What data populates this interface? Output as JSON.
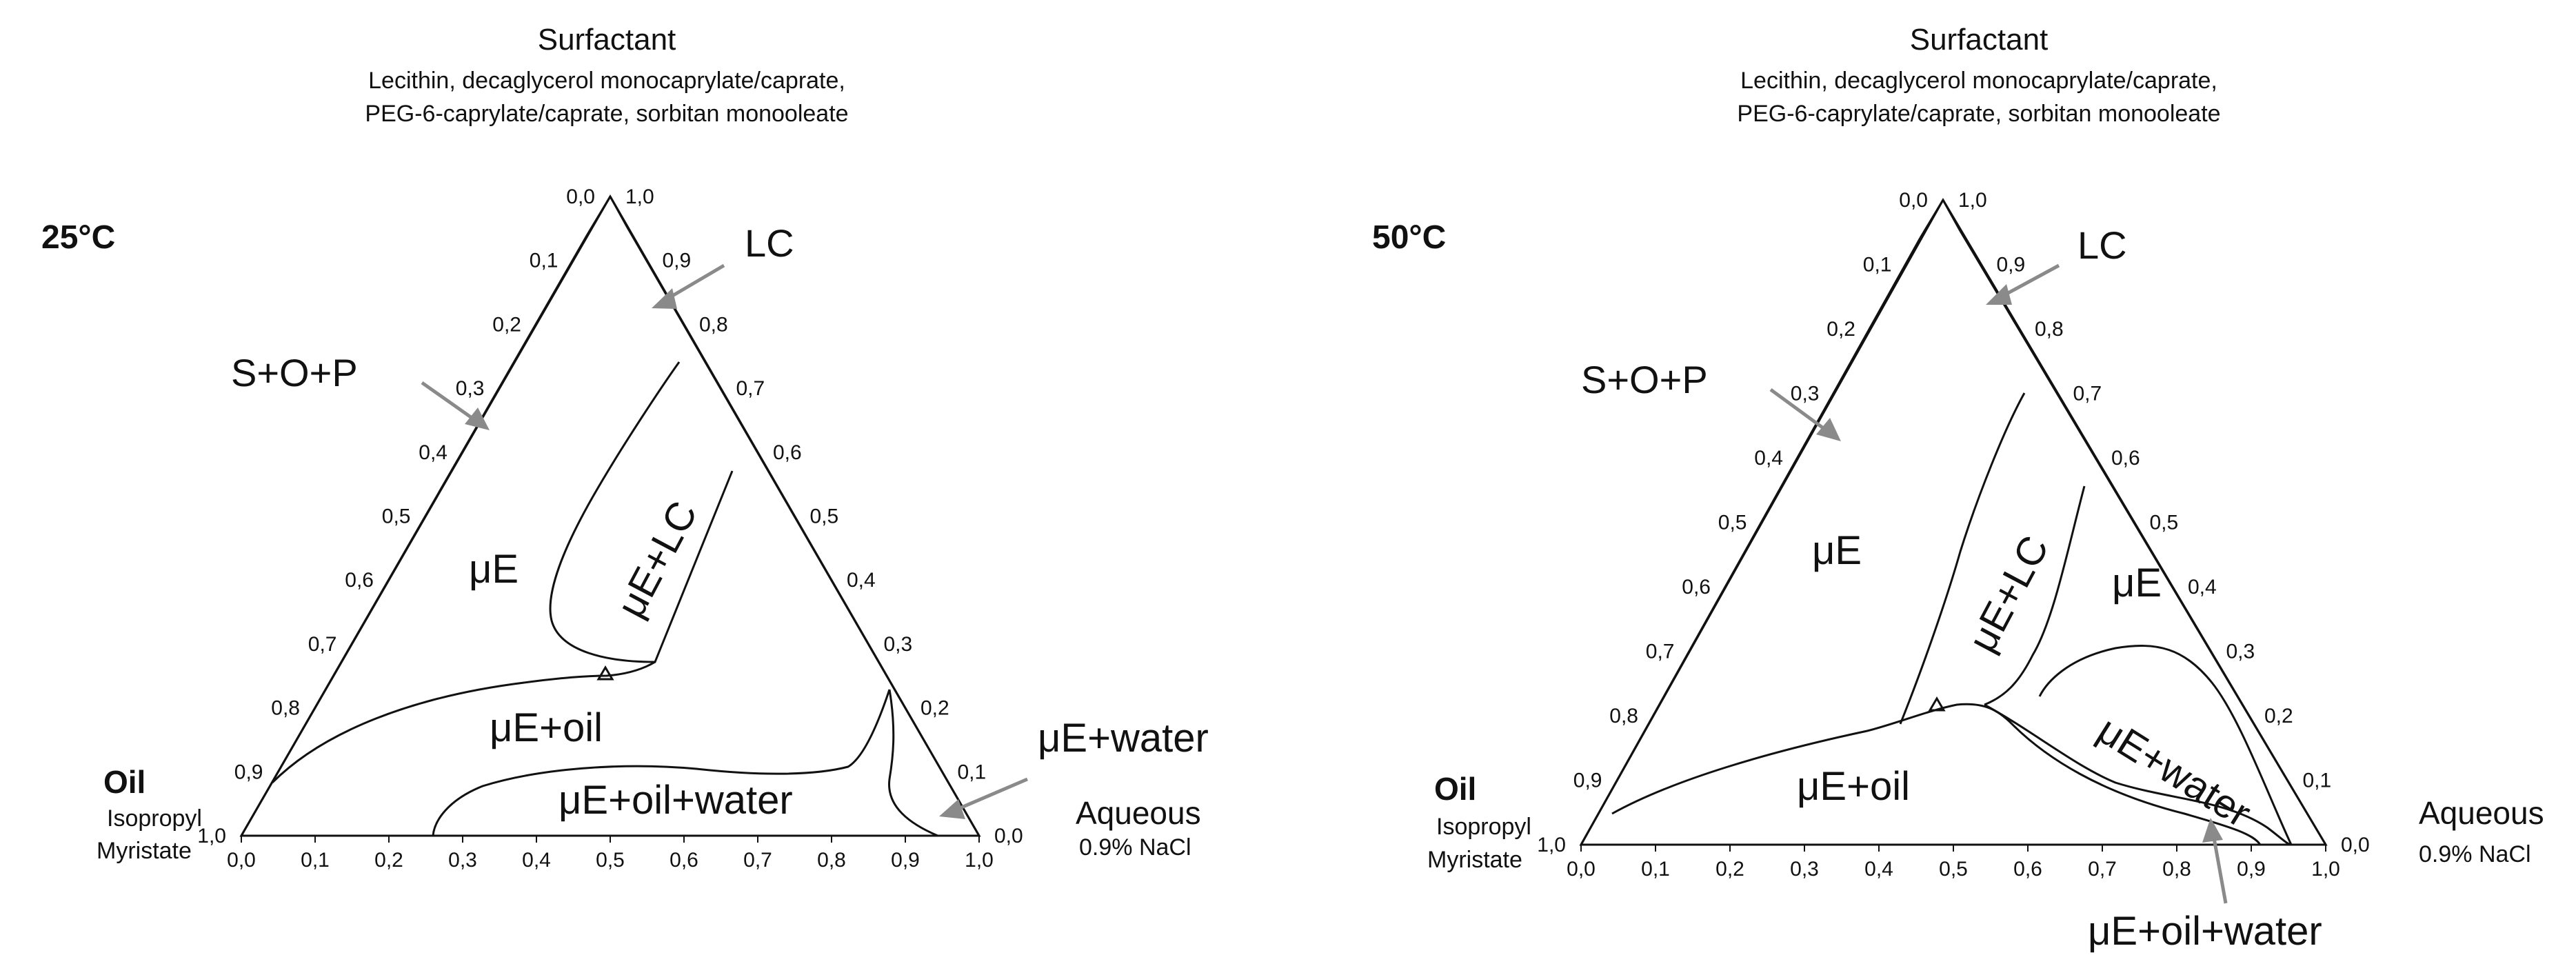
{
  "panels": [
    {
      "header_title": "Surfactant",
      "header_sub1": "Lecithin, decaglycerol monocaprylate/caprate,",
      "header_sub2": "PEG-6-caprylate/caprate, sorbitan monooleate",
      "temperature": "25°C",
      "vertex_oil": "Oil",
      "vertex_oil_sub1": "Isopropyl",
      "vertex_oil_sub2": "Myristate",
      "vertex_aqueous": "Aqueous",
      "vertex_aqueous_sub": "0.9% NaCl",
      "labels": {
        "lc": "LC",
        "sop": "S+O+P",
        "ue": "μE",
        "ue_lc": "μE+LC",
        "ue_oil": "μE+oil",
        "ue_oil_water": "μE+oil+water",
        "ue_water": "μE+water"
      }
    },
    {
      "header_title": "Surfactant",
      "header_sub1": "Lecithin, decaglycerol monocaprylate/caprate,",
      "header_sub2": "PEG-6-caprylate/caprate, sorbitan monooleate",
      "temperature": "50°C",
      "vertex_oil": "Oil",
      "vertex_oil_sub1": "Isopropyl",
      "vertex_oil_sub2": "Myristate",
      "vertex_aqueous": "Aqueous",
      "vertex_aqueous_sub": "0.9% NaCl",
      "labels": {
        "lc": "LC",
        "sop": "S+O+P",
        "ue": "μE",
        "ue_lc": "μE+LC",
        "ue_right": "μE",
        "ue_oil": "μE+oil",
        "ue_water": "μE+water",
        "ue_oil_water": "μE+oil+water"
      }
    }
  ],
  "ticks": {
    "bottom": [
      "0,0",
      "0,1",
      "0,2",
      "0,3",
      "0,4",
      "0,5",
      "0,6",
      "0,7",
      "0,8",
      "0,9",
      "1,0"
    ],
    "left": [
      "1,0",
      "0,9",
      "0,8",
      "0,7",
      "0,6",
      "0,5",
      "0,4",
      "0,3",
      "0,2",
      "0,1",
      "0,0"
    ],
    "right": [
      "0,0",
      "0,1",
      "0,2",
      "0,3",
      "0,4",
      "0,5",
      "0,6",
      "0,7",
      "0,8",
      "0,9",
      "1,0"
    ]
  }
}
